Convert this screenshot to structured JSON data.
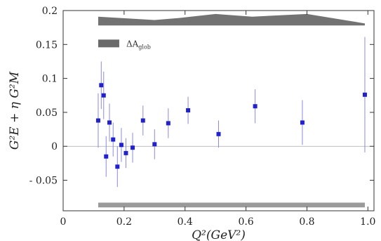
{
  "chart_data": {
    "type": "scatter",
    "xlabel": "Q²(GeV²)",
    "ylabel": "G²E + η G²M",
    "xlim": [
      0,
      1.02
    ],
    "ylim": [
      -0.095,
      0.2
    ],
    "xticks": [
      "0",
      "0.2",
      "0.4",
      "0.6",
      "0.8",
      "1.0"
    ],
    "xtick_values": [
      0,
      0.2,
      0.4,
      0.6,
      0.8,
      1.0
    ],
    "yticks": [
      "0.2",
      "0.15",
      "0.1",
      "0.05",
      "0",
      "- 0.05"
    ],
    "ytick_values": [
      0.2,
      0.15,
      0.1,
      0.05,
      0,
      -0.05
    ],
    "grid": false,
    "zero_line": true,
    "series": [
      {
        "points": [
          {
            "x": 0.115,
            "y": 0.038,
            "err": 0.04
          },
          {
            "x": 0.125,
            "y": 0.09,
            "err": 0.035
          },
          {
            "x": 0.133,
            "y": 0.075,
            "err": 0.035
          },
          {
            "x": 0.141,
            "y": -0.015,
            "err": 0.03
          },
          {
            "x": 0.152,
            "y": 0.035,
            "err": 0.028
          },
          {
            "x": 0.164,
            "y": 0.01,
            "err": 0.025
          },
          {
            "x": 0.178,
            "y": -0.03,
            "err": 0.03
          },
          {
            "x": 0.191,
            "y": 0.002,
            "err": 0.025
          },
          {
            "x": 0.206,
            "y": -0.01,
            "err": 0.022
          },
          {
            "x": 0.228,
            "y": -0.002,
            "err": 0.022
          },
          {
            "x": 0.262,
            "y": 0.038,
            "err": 0.022
          },
          {
            "x": 0.3,
            "y": 0.003,
            "err": 0.022
          },
          {
            "x": 0.345,
            "y": 0.034,
            "err": 0.022
          },
          {
            "x": 0.41,
            "y": 0.053,
            "err": 0.02
          },
          {
            "x": 0.51,
            "y": 0.018,
            "err": 0.02
          },
          {
            "x": 0.63,
            "y": 0.059,
            "err": 0.025
          },
          {
            "x": 0.785,
            "y": 0.035,
            "err": 0.033
          },
          {
            "x": 0.99,
            "y": 0.076,
            "err": 0.085
          }
        ],
        "color": "#2222cc"
      }
    ],
    "band_top": {
      "x": [
        0.115,
        0.3,
        0.38,
        0.5,
        0.62,
        0.8,
        0.99
      ],
      "y_bottom": 0.178,
      "y_top": [
        0.191,
        0.186,
        0.189,
        0.195,
        0.191,
        0.195,
        0.181
      ],
      "color": "#6a6a6a"
    },
    "band_bottom": {
      "x_range": [
        0.115,
        0.99
      ],
      "y_range": [
        -0.09,
        -0.083
      ],
      "color": "#9a9a9a"
    },
    "legend": {
      "label_main": "ΔA",
      "label_sub": "glob",
      "placement": "top-left",
      "color": "#6a6a6a"
    }
  }
}
